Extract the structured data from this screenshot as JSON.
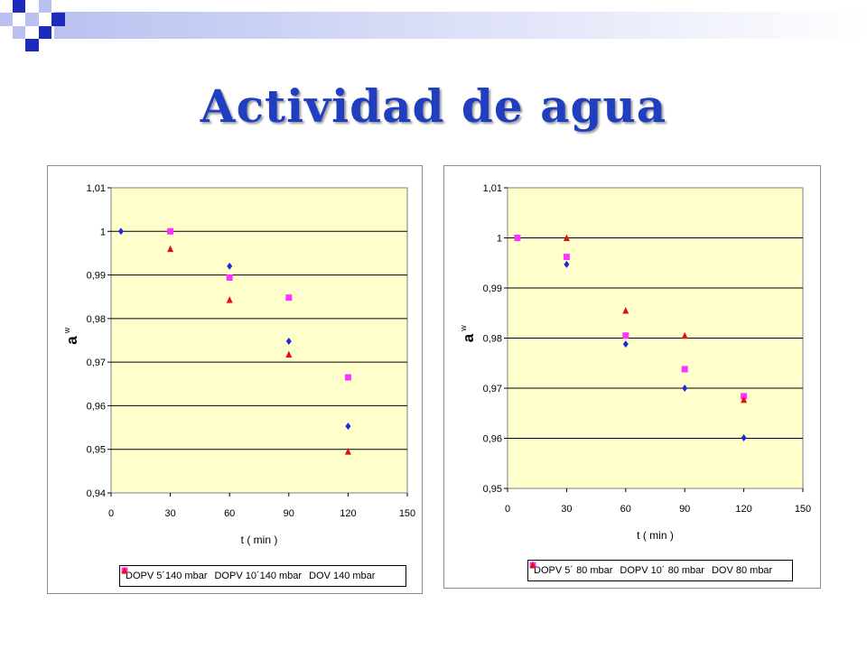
{
  "title": "Actividad de agua",
  "colors": {
    "title": "#1f3fc0",
    "plot_bg": "#ffffcc",
    "deco_blue": "#1c2bbd",
    "deco_light": "#b9c1f0"
  },
  "chart_data": [
    {
      "type": "scatter",
      "xlabel": "t ( min )",
      "ylabel": "a",
      "ylabel_sub": "w",
      "xlim": [
        0,
        150
      ],
      "ylim": [
        0.94,
        1.01
      ],
      "xticks": [
        "0",
        "30",
        "60",
        "90",
        "120",
        "150"
      ],
      "yticks": [
        "0,94",
        "0,95",
        "0,96",
        "0,97",
        "0,98",
        "0,99",
        "1",
        "1,01"
      ],
      "grid": true,
      "legend_position": "bottom",
      "series": [
        {
          "name": "DOPV 5´140 mbar",
          "marker": "diamond",
          "color": "#1c2bd4",
          "x": [
            5,
            30,
            60,
            90,
            120
          ],
          "y": [
            1.0,
            1.0,
            0.992,
            0.9748,
            0.9553
          ]
        },
        {
          "name": "DOPV 10´140 mbar",
          "marker": "square",
          "color": "#ff33ff",
          "x": [
            30,
            60,
            90,
            120
          ],
          "y": [
            1.0,
            0.9894,
            0.9848,
            0.9665
          ]
        },
        {
          "name": "DOV 140 mbar",
          "marker": "triangle",
          "color": "#e01010",
          "x": [
            30,
            60,
            90,
            120
          ],
          "y": [
            0.996,
            0.9843,
            0.9718,
            0.9495
          ]
        }
      ]
    },
    {
      "type": "scatter",
      "xlabel": "t ( min )",
      "ylabel": "a",
      "ylabel_sub": "w",
      "xlim": [
        0,
        150
      ],
      "ylim": [
        0.95,
        1.01
      ],
      "xticks": [
        "0",
        "30",
        "60",
        "90",
        "120",
        "150"
      ],
      "yticks": [
        "0,95",
        "0,96",
        "0,97",
        "0,98",
        "0,99",
        "1",
        "1,01"
      ],
      "grid": true,
      "legend_position": "bottom",
      "series": [
        {
          "name": "DOPV 5´ 80 mbar",
          "marker": "diamond",
          "color": "#1c2bd4",
          "x": [
            5,
            30,
            60,
            90,
            120
          ],
          "y": [
            1.0,
            0.9947,
            0.9788,
            0.97,
            0.9601
          ]
        },
        {
          "name": "DOPV 10´ 80 mbar",
          "marker": "square",
          "color": "#ff33ff",
          "x": [
            5,
            30,
            60,
            90,
            120
          ],
          "y": [
            1.0,
            0.9962,
            0.9805,
            0.9738,
            0.9684
          ]
        },
        {
          "name": "DOV 80 mbar",
          "marker": "triangle",
          "color": "#e01010",
          "x": [
            30,
            60,
            90,
            120
          ],
          "y": [
            1.0,
            0.9855,
            0.9805,
            0.9677
          ]
        }
      ]
    }
  ]
}
